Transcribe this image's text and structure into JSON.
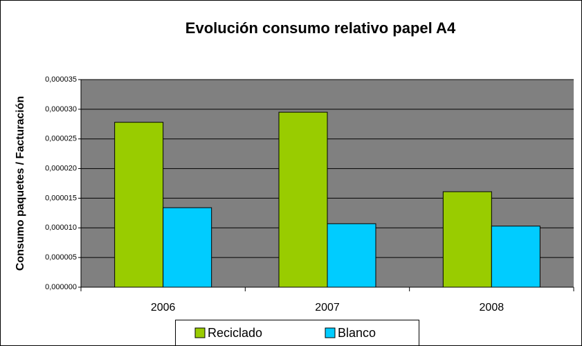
{
  "chart_data": {
    "type": "bar",
    "title": "Evolución consumo relativo papel A4",
    "y_label": "Consumo paquetes / Facturación",
    "categories": [
      "2006",
      "2007",
      "2008"
    ],
    "series": [
      {
        "name": "Reciclado",
        "color": "#99cc00",
        "values": [
          2.78e-05,
          2.95e-05,
          1.61e-05
        ]
      },
      {
        "name": "Blanco",
        "color": "#00ccff",
        "values": [
          1.34e-05,
          1.07e-05,
          1.03e-05
        ]
      }
    ],
    "ylim": [
      0,
      3.5e-05
    ],
    "yticks": [
      {
        "value": 0,
        "label": "0,000000"
      },
      {
        "value": 5e-06,
        "label": "0,000005"
      },
      {
        "value": 1e-05,
        "label": "0,000010"
      },
      {
        "value": 1.5e-05,
        "label": "0,000015"
      },
      {
        "value": 2e-05,
        "label": "0,000020"
      },
      {
        "value": 2.5e-05,
        "label": "0,000025"
      },
      {
        "value": 3e-05,
        "label": "0,000030"
      },
      {
        "value": 3.5e-05,
        "label": "0,000035"
      }
    ],
    "grid": true,
    "legend": "bottom"
  }
}
